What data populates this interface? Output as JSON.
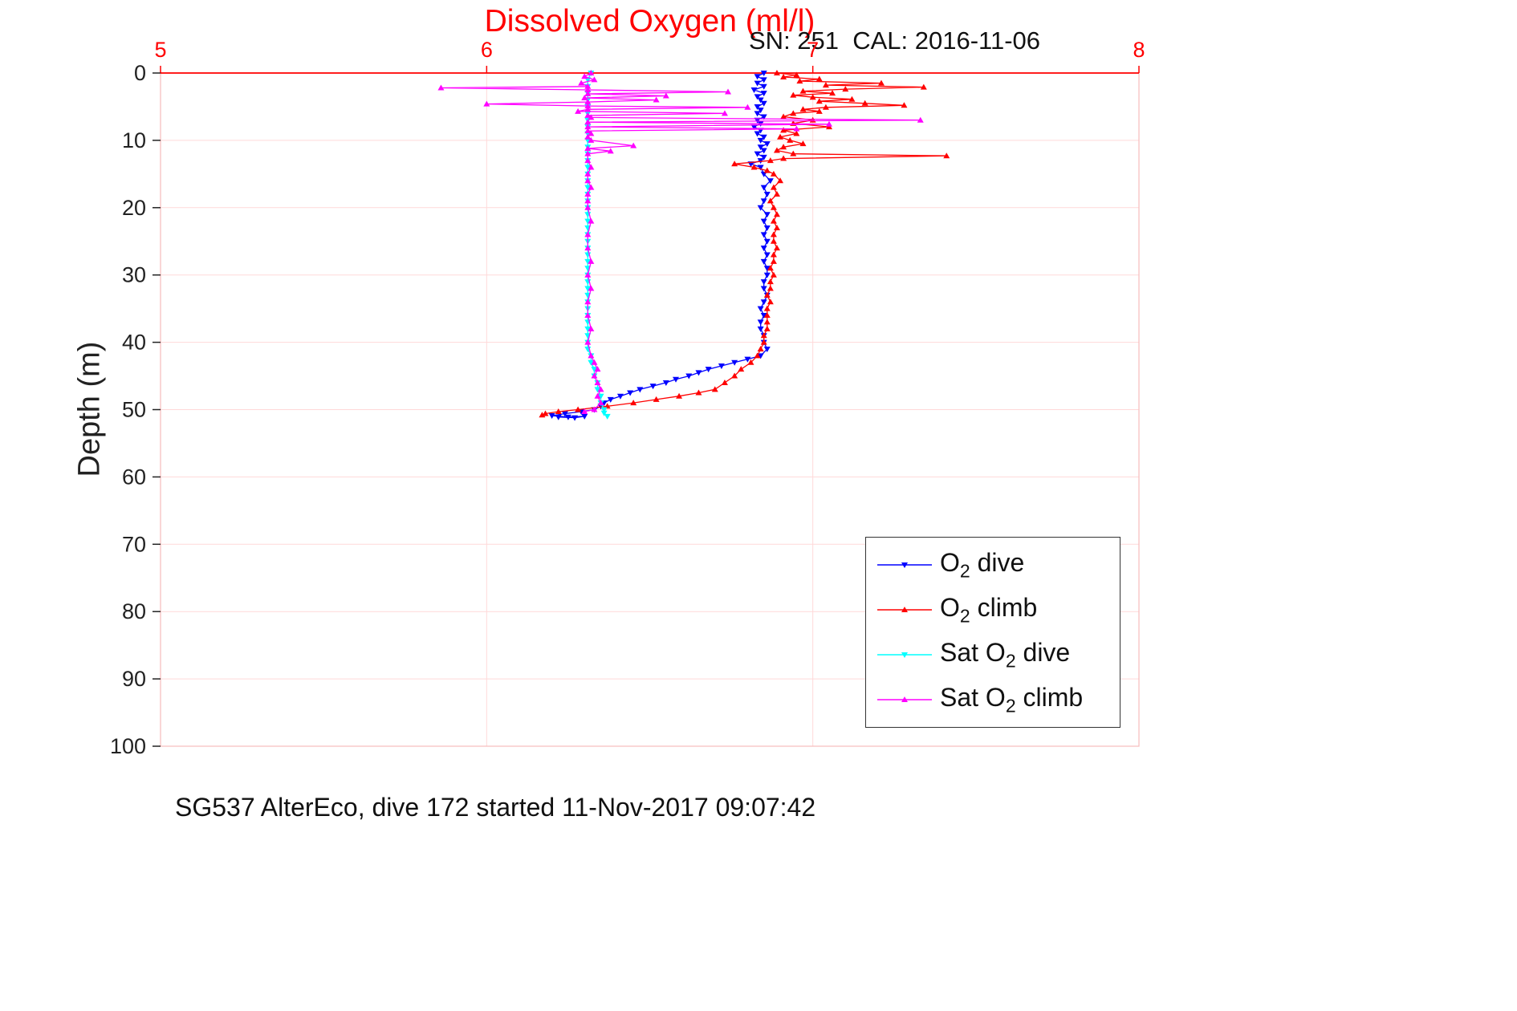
{
  "title": "Dissolved Oxygen (ml/l)",
  "annotation": "SN: 251  CAL: 2016-11-06",
  "caption": "SG537 AlterEco, dive 172 started 11-Nov-2017 09:07:42",
  "colors": {
    "title": "#ff0000",
    "x_axis": "#ff0000",
    "y_axis": "#222222",
    "grid": "#ffd9d9",
    "o2_dive": "#0000ff",
    "o2_climb": "#ff0000",
    "sat_o2_dive": "#00ffff",
    "sat_o2_climb": "#ff00ff"
  },
  "legend": {
    "items": [
      {
        "pre": "O",
        "sub": "2",
        "post": " dive"
      },
      {
        "pre": "O",
        "sub": "2",
        "post": " climb"
      },
      {
        "pre": "Sat O",
        "sub": "2",
        "post": " dive"
      },
      {
        "pre": "Sat O",
        "sub": "2",
        "post": " climb"
      }
    ]
  },
  "chart_data": {
    "type": "line",
    "title": "Dissolved Oxygen (ml/l)",
    "xlabel": "",
    "x_axis": {
      "min": 5,
      "max": 8,
      "ticks": [
        5,
        6,
        7,
        8
      ],
      "position": "top",
      "color": "#ff0000"
    },
    "y_axis": {
      "min": 0,
      "max": 100,
      "ticks": [
        0,
        10,
        20,
        30,
        40,
        50,
        60,
        70,
        80,
        90,
        100
      ],
      "reversed": true,
      "label": "Depth (m)"
    },
    "grid": true,
    "legend_position": "inside-bottom-right",
    "series": [
      {
        "name": "O2 dive",
        "color": "#0000ff",
        "marker": "triangle-down",
        "points": [
          [
            6.85,
            0
          ],
          [
            6.83,
            0.5
          ],
          [
            6.85,
            1
          ],
          [
            6.83,
            1.5
          ],
          [
            6.85,
            2
          ],
          [
            6.82,
            2.5
          ],
          [
            6.85,
            3
          ],
          [
            6.83,
            3.5
          ],
          [
            6.84,
            4
          ],
          [
            6.85,
            4.5
          ],
          [
            6.83,
            5
          ],
          [
            6.84,
            5.5
          ],
          [
            6.83,
            6
          ],
          [
            6.85,
            6.5
          ],
          [
            6.83,
            7
          ],
          [
            6.84,
            7.5
          ],
          [
            6.82,
            8
          ],
          [
            6.84,
            8.5
          ],
          [
            6.83,
            9
          ],
          [
            6.85,
            9.5
          ],
          [
            6.84,
            10
          ],
          [
            6.86,
            10.5
          ],
          [
            6.84,
            11
          ],
          [
            6.85,
            11.5
          ],
          [
            6.83,
            12
          ],
          [
            6.85,
            12.5
          ],
          [
            6.84,
            13
          ],
          [
            6.81,
            13.5
          ],
          [
            6.84,
            14
          ],
          [
            6.85,
            15
          ],
          [
            6.87,
            16
          ],
          [
            6.85,
            17
          ],
          [
            6.86,
            18
          ],
          [
            6.85,
            19
          ],
          [
            6.84,
            20
          ],
          [
            6.86,
            21
          ],
          [
            6.85,
            22
          ],
          [
            6.86,
            23
          ],
          [
            6.85,
            24
          ],
          [
            6.86,
            25
          ],
          [
            6.85,
            26
          ],
          [
            6.86,
            27
          ],
          [
            6.85,
            28
          ],
          [
            6.86,
            29
          ],
          [
            6.86,
            30
          ],
          [
            6.85,
            31
          ],
          [
            6.85,
            32
          ],
          [
            6.86,
            33
          ],
          [
            6.85,
            34
          ],
          [
            6.84,
            35
          ],
          [
            6.85,
            36
          ],
          [
            6.84,
            37
          ],
          [
            6.84,
            38
          ],
          [
            6.85,
            39
          ],
          [
            6.85,
            40
          ],
          [
            6.86,
            41
          ],
          [
            6.84,
            42
          ],
          [
            6.8,
            42.5
          ],
          [
            6.76,
            43
          ],
          [
            6.72,
            43.5
          ],
          [
            6.68,
            44
          ],
          [
            6.65,
            44.5
          ],
          [
            6.62,
            45
          ],
          [
            6.58,
            45.5
          ],
          [
            6.55,
            46
          ],
          [
            6.51,
            46.5
          ],
          [
            6.47,
            47
          ],
          [
            6.44,
            47.5
          ],
          [
            6.41,
            48
          ],
          [
            6.38,
            48.5
          ],
          [
            6.36,
            49
          ],
          [
            6.35,
            49.5
          ],
          [
            6.33,
            50
          ],
          [
            6.29,
            50.3
          ],
          [
            6.24,
            50.6
          ],
          [
            6.2,
            50.9
          ],
          [
            6.25,
            51.1
          ],
          [
            6.3,
            51.0
          ],
          [
            6.27,
            51.2
          ],
          [
            6.22,
            51.1
          ]
        ]
      },
      {
        "name": "O2 climb",
        "color": "#ff0000",
        "marker": "triangle-up",
        "points": [
          [
            6.89,
            0
          ],
          [
            6.95,
            0.3
          ],
          [
            6.91,
            0.6
          ],
          [
            7.02,
            0.9
          ],
          [
            6.96,
            1.2
          ],
          [
            7.21,
            1.5
          ],
          [
            7.04,
            1.8
          ],
          [
            7.34,
            2.1
          ],
          [
            7.1,
            2.4
          ],
          [
            6.97,
            2.7
          ],
          [
            7.06,
            3.0
          ],
          [
            6.94,
            3.3
          ],
          [
            7.0,
            3.6
          ],
          [
            7.12,
            3.9
          ],
          [
            7.02,
            4.2
          ],
          [
            7.16,
            4.5
          ],
          [
            7.28,
            4.8
          ],
          [
            7.04,
            5.1
          ],
          [
            6.97,
            5.4
          ],
          [
            7.02,
            5.7
          ],
          [
            6.94,
            6.0
          ],
          [
            6.91,
            6.5
          ],
          [
            7.0,
            7.0
          ],
          [
            6.94,
            7.5
          ],
          [
            7.05,
            8.0
          ],
          [
            6.91,
            8.5
          ],
          [
            6.95,
            9.0
          ],
          [
            6.9,
            9.5
          ],
          [
            6.93,
            10.0
          ],
          [
            6.97,
            10.5
          ],
          [
            6.91,
            11.0
          ],
          [
            6.89,
            11.5
          ],
          [
            6.94,
            12.0
          ],
          [
            7.41,
            12.3
          ],
          [
            6.91,
            12.7
          ],
          [
            6.87,
            13.0
          ],
          [
            6.76,
            13.5
          ],
          [
            6.82,
            14.0
          ],
          [
            6.86,
            14.5
          ],
          [
            6.88,
            15
          ],
          [
            6.9,
            16
          ],
          [
            6.88,
            17
          ],
          [
            6.89,
            18
          ],
          [
            6.87,
            19
          ],
          [
            6.88,
            20
          ],
          [
            6.89,
            21
          ],
          [
            6.88,
            22
          ],
          [
            6.89,
            23
          ],
          [
            6.88,
            24
          ],
          [
            6.88,
            25
          ],
          [
            6.89,
            26
          ],
          [
            6.88,
            27
          ],
          [
            6.88,
            28
          ],
          [
            6.87,
            29
          ],
          [
            6.88,
            30
          ],
          [
            6.87,
            31
          ],
          [
            6.87,
            32
          ],
          [
            6.86,
            33
          ],
          [
            6.87,
            34
          ],
          [
            6.86,
            35
          ],
          [
            6.86,
            36
          ],
          [
            6.86,
            37
          ],
          [
            6.86,
            38
          ],
          [
            6.85,
            39
          ],
          [
            6.85,
            40
          ],
          [
            6.84,
            41
          ],
          [
            6.83,
            42
          ],
          [
            6.81,
            43
          ],
          [
            6.78,
            44
          ],
          [
            6.76,
            45
          ],
          [
            6.73,
            46
          ],
          [
            6.7,
            47
          ],
          [
            6.65,
            47.5
          ],
          [
            6.59,
            48
          ],
          [
            6.52,
            48.5
          ],
          [
            6.45,
            49
          ],
          [
            6.37,
            49.5
          ],
          [
            6.28,
            50
          ],
          [
            6.22,
            50.3
          ],
          [
            6.18,
            50.6
          ],
          [
            6.17,
            50.8
          ]
        ]
      },
      {
        "name": "Sat O2 dive",
        "color": "#00ffff",
        "marker": "triangle-down",
        "points": [
          [
            6.32,
            0
          ],
          [
            6.31,
            1
          ],
          [
            6.31,
            2
          ],
          [
            6.31,
            3
          ],
          [
            6.31,
            4
          ],
          [
            6.31,
            5
          ],
          [
            6.31,
            6
          ],
          [
            6.31,
            7
          ],
          [
            6.31,
            8
          ],
          [
            6.31,
            9
          ],
          [
            6.31,
            10
          ],
          [
            6.31,
            11
          ],
          [
            6.31,
            12
          ],
          [
            6.31,
            13
          ],
          [
            6.31,
            14
          ],
          [
            6.31,
            15
          ],
          [
            6.31,
            16
          ],
          [
            6.31,
            17
          ],
          [
            6.31,
            18
          ],
          [
            6.31,
            19
          ],
          [
            6.31,
            20
          ],
          [
            6.31,
            21
          ],
          [
            6.31,
            22
          ],
          [
            6.31,
            23
          ],
          [
            6.31,
            24
          ],
          [
            6.31,
            25
          ],
          [
            6.31,
            26
          ],
          [
            6.31,
            27
          ],
          [
            6.31,
            28
          ],
          [
            6.31,
            29
          ],
          [
            6.31,
            30
          ],
          [
            6.31,
            31
          ],
          [
            6.31,
            32
          ],
          [
            6.31,
            33
          ],
          [
            6.31,
            34
          ],
          [
            6.31,
            35
          ],
          [
            6.31,
            36
          ],
          [
            6.31,
            37
          ],
          [
            6.31,
            38
          ],
          [
            6.31,
            39
          ],
          [
            6.31,
            40
          ],
          [
            6.31,
            41
          ],
          [
            6.32,
            42
          ],
          [
            6.32,
            43
          ],
          [
            6.33,
            44
          ],
          [
            6.33,
            45
          ],
          [
            6.34,
            46
          ],
          [
            6.34,
            47
          ],
          [
            6.35,
            48
          ],
          [
            6.35,
            49
          ],
          [
            6.36,
            50
          ],
          [
            6.36,
            50.5
          ],
          [
            6.37,
            51
          ]
        ]
      },
      {
        "name": "Sat O2 climb",
        "color": "#ff00ff",
        "marker": "triangle-up",
        "points": [
          [
            6.32,
            0
          ],
          [
            6.3,
            0.5
          ],
          [
            6.33,
            1
          ],
          [
            6.29,
            1.5
          ],
          [
            6.31,
            2
          ],
          [
            5.86,
            2.2
          ],
          [
            6.31,
            2.5
          ],
          [
            6.74,
            2.8
          ],
          [
            6.31,
            3.1
          ],
          [
            6.55,
            3.4
          ],
          [
            6.3,
            3.7
          ],
          [
            6.52,
            4.0
          ],
          [
            6.31,
            4.3
          ],
          [
            6.0,
            4.6
          ],
          [
            6.31,
            4.9
          ],
          [
            6.8,
            5.1
          ],
          [
            6.31,
            5.4
          ],
          [
            6.28,
            5.7
          ],
          [
            6.73,
            6.0
          ],
          [
            6.31,
            6.3
          ],
          [
            6.32,
            6.6
          ],
          [
            7.33,
            7.0
          ],
          [
            6.31,
            7.3
          ],
          [
            7.05,
            7.6
          ],
          [
            6.31,
            8.0
          ],
          [
            6.95,
            8.3
          ],
          [
            6.31,
            8.6
          ],
          [
            6.32,
            9.0
          ],
          [
            6.31,
            9.5
          ],
          [
            6.32,
            10
          ],
          [
            6.45,
            10.8
          ],
          [
            6.31,
            11.2
          ],
          [
            6.38,
            11.6
          ],
          [
            6.31,
            12
          ],
          [
            6.31,
            13
          ],
          [
            6.32,
            14
          ],
          [
            6.31,
            15
          ],
          [
            6.31,
            16
          ],
          [
            6.32,
            17
          ],
          [
            6.31,
            18
          ],
          [
            6.31,
            19
          ],
          [
            6.31,
            20
          ],
          [
            6.32,
            22
          ],
          [
            6.31,
            24
          ],
          [
            6.31,
            26
          ],
          [
            6.32,
            28
          ],
          [
            6.31,
            30
          ],
          [
            6.32,
            32
          ],
          [
            6.31,
            34
          ],
          [
            6.31,
            36
          ],
          [
            6.32,
            38
          ],
          [
            6.31,
            40
          ],
          [
            6.32,
            42
          ],
          [
            6.33,
            43
          ],
          [
            6.34,
            44
          ],
          [
            6.33,
            45
          ],
          [
            6.34,
            46
          ],
          [
            6.35,
            47
          ],
          [
            6.34,
            48
          ],
          [
            6.35,
            49
          ],
          [
            6.33,
            50
          ],
          [
            6.3,
            50.3
          ]
        ]
      }
    ]
  }
}
